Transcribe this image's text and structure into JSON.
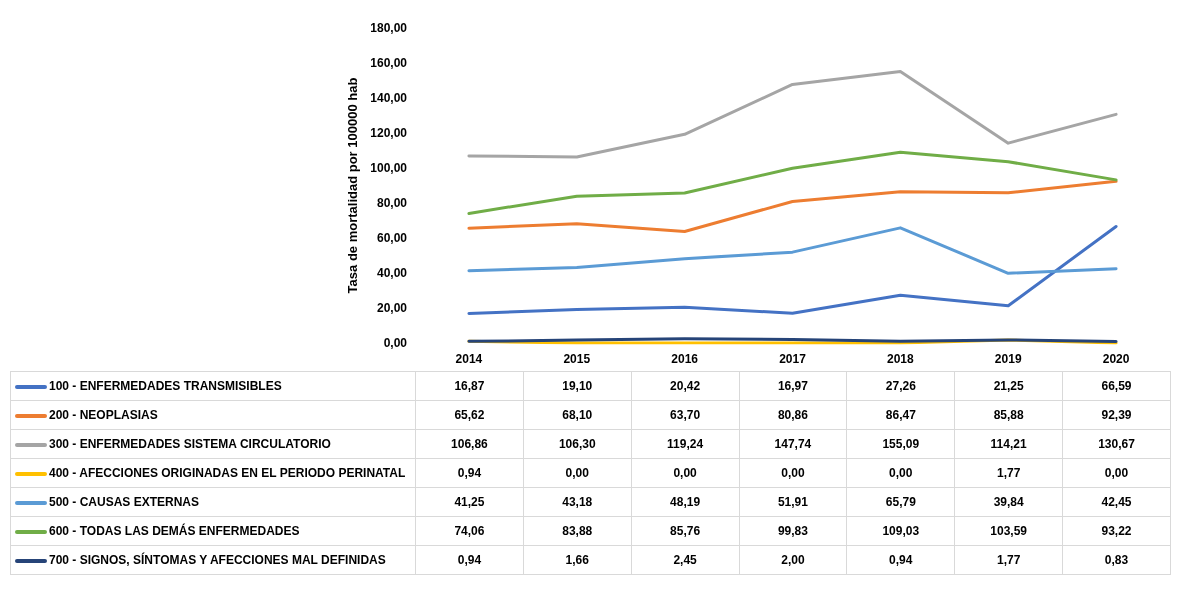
{
  "chart_data": {
    "type": "line",
    "ylabel": "Tasa de mortalidad por 100000 hab",
    "categories": [
      "2014",
      "2015",
      "2016",
      "2017",
      "2018",
      "2019",
      "2020"
    ],
    "series": [
      {
        "name": "100 - ENFERMEDADES TRANSMISIBLES",
        "color": "#4472c4",
        "values": [
          16.87,
          19.1,
          20.42,
          16.97,
          27.26,
          21.25,
          66.59
        ],
        "value_labels": [
          "16,87",
          "19,10",
          "20,42",
          "16,97",
          "27,26",
          "21,25",
          "66,59"
        ]
      },
      {
        "name": "200 - NEOPLASIAS",
        "color": "#ed7d31",
        "values": [
          65.62,
          68.1,
          63.7,
          80.86,
          86.47,
          85.88,
          92.39
        ],
        "value_labels": [
          "65,62",
          "68,10",
          "63,70",
          "80,86",
          "86,47",
          "85,88",
          "92,39"
        ]
      },
      {
        "name": "300 - ENFERMEDADES SISTEMA CIRCULATORIO",
        "color": "#a5a5a5",
        "values": [
          106.86,
          106.3,
          119.24,
          147.74,
          155.09,
          114.21,
          130.67
        ],
        "value_labels": [
          "106,86",
          "106,30",
          "119,24",
          "147,74",
          "155,09",
          "114,21",
          "130,67"
        ]
      },
      {
        "name": "400 - AFECCIONES ORIGINADAS EN EL PERIODO PERINATAL",
        "color": "#ffc000",
        "values": [
          0.94,
          0.0,
          0.0,
          0.0,
          0.0,
          1.77,
          0.0
        ],
        "value_labels": [
          "0,94",
          "0,00",
          "0,00",
          "0,00",
          "0,00",
          "1,77",
          "0,00"
        ]
      },
      {
        "name": "500 - CAUSAS EXTERNAS",
        "color": "#5b9bd5",
        "values": [
          41.25,
          43.18,
          48.19,
          51.91,
          65.79,
          39.84,
          42.45
        ],
        "value_labels": [
          "41,25",
          "43,18",
          "48,19",
          "51,91",
          "65,79",
          "39,84",
          "42,45"
        ]
      },
      {
        "name": "600 - TODAS LAS DEMÁS ENFERMEDADES",
        "color": "#70ad47",
        "values": [
          74.06,
          83.88,
          85.76,
          99.83,
          109.03,
          103.59,
          93.22
        ],
        "value_labels": [
          "74,06",
          "83,88",
          "85,76",
          "99,83",
          "109,03",
          "103,59",
          "93,22"
        ]
      },
      {
        "name": "700 - SIGNOS, SÍNTOMAS Y AFECCIONES MAL DEFINIDAS",
        "color": "#264478",
        "values": [
          0.94,
          1.66,
          2.45,
          2.0,
          0.94,
          1.77,
          0.83
        ],
        "value_labels": [
          "0,94",
          "1,66",
          "2,45",
          "2,00",
          "0,94",
          "1,77",
          "0,83"
        ]
      }
    ],
    "ylim": [
      0,
      180
    ],
    "yticks": [
      {
        "value": 0,
        "label": "0,00"
      },
      {
        "value": 20,
        "label": "20,00"
      },
      {
        "value": 40,
        "label": "40,00"
      },
      {
        "value": 60,
        "label": "60,00"
      },
      {
        "value": 80,
        "label": "80,00"
      },
      {
        "value": 100,
        "label": "100,00"
      },
      {
        "value": 120,
        "label": "120,00"
      },
      {
        "value": 140,
        "label": "140,00"
      },
      {
        "value": 160,
        "label": "160,00"
      },
      {
        "value": 180,
        "label": "180,00"
      }
    ],
    "grid": false,
    "legend": "bottom",
    "marker": "none",
    "line_style": "solid"
  }
}
